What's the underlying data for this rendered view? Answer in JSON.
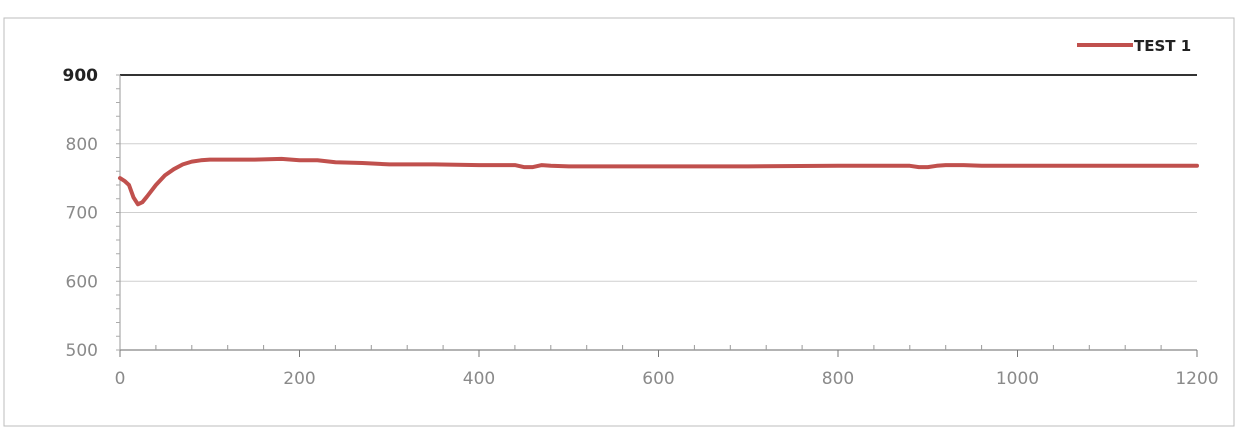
{
  "chart_data": {
    "type": "line",
    "title": "",
    "xlabel": "",
    "ylabel": "",
    "xlim": [
      0,
      1200
    ],
    "ylim": [
      500,
      900
    ],
    "x_ticks": [
      0,
      200,
      400,
      600,
      800,
      1000,
      1200
    ],
    "y_ticks": [
      500,
      600,
      700,
      800,
      900
    ],
    "x_tick_labels": [
      "0",
      "200",
      "400",
      "600",
      "800",
      "1000",
      "1200"
    ],
    "y_tick_labels": [
      "500",
      "600",
      "700",
      "800",
      "900"
    ],
    "grid": "horizontal",
    "legend": {
      "placement": "top-right",
      "entries": [
        "TEST 1"
      ]
    },
    "series": [
      {
        "name": "TEST 1",
        "color": "#c0504d",
        "x": [
          0,
          5,
          10,
          15,
          20,
          25,
          30,
          40,
          50,
          60,
          70,
          80,
          90,
          100,
          120,
          150,
          180,
          200,
          220,
          240,
          270,
          300,
          350,
          400,
          440,
          450,
          460,
          470,
          480,
          500,
          600,
          700,
          800,
          880,
          890,
          900,
          910,
          920,
          940,
          960,
          1000,
          1100,
          1200
        ],
        "y": [
          750,
          746,
          740,
          722,
          712,
          715,
          723,
          740,
          754,
          763,
          770,
          774,
          776,
          777,
          777,
          777,
          778,
          776,
          776,
          773,
          772,
          770,
          770,
          769,
          769,
          766,
          766,
          769,
          768,
          767,
          767,
          767,
          768,
          768,
          766,
          766,
          768,
          769,
          769,
          768,
          768,
          768,
          768
        ]
      }
    ]
  }
}
